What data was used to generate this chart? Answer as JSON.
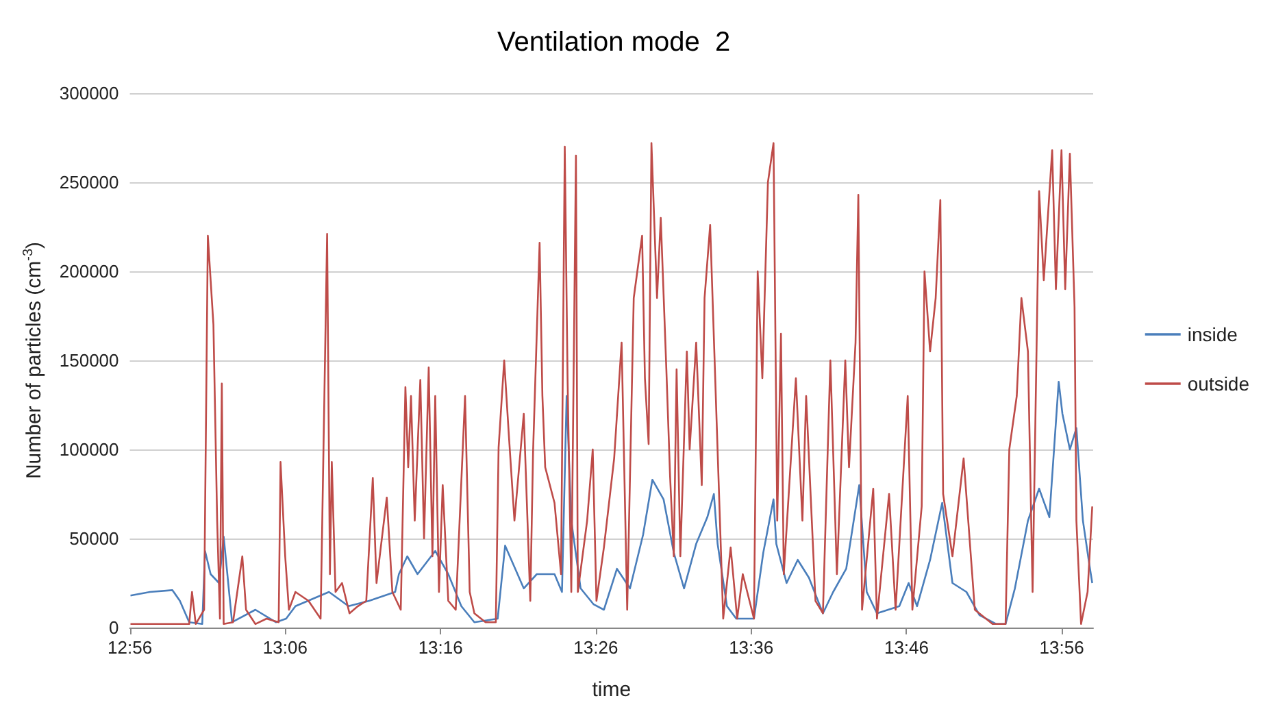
{
  "chart_data": {
    "type": "line",
    "title": "Ventilation mode  2",
    "xlabel": "time",
    "ylabel": "Number of particles (cm$^{-3}$)",
    "xlim": [
      12.9333,
      13.967
    ],
    "xticks": [
      {
        "value": 12.9333,
        "label": "12:56"
      },
      {
        "value": 13.1,
        "label": "13:06"
      },
      {
        "value": 13.2667,
        "label": "13:16"
      },
      {
        "value": 13.4333,
        "label": "13:26"
      },
      {
        "value": 13.6,
        "label": "13:36"
      },
      {
        "value": 13.7667,
        "label": "13:46"
      },
      {
        "value": 13.9333,
        "label": "13:56"
      }
    ],
    "ylim": [
      0,
      300000
    ],
    "yticks": [
      0,
      50000,
      100000,
      150000,
      200000,
      250000,
      300000
    ],
    "grid": "y",
    "legend": "right",
    "series": [
      {
        "name": "inside",
        "color": "#4a7ebb",
        "x": [
          12.934,
          12.955,
          12.979,
          12.987,
          12.997,
          13.011,
          13.014,
          13.02,
          13.029,
          13.034,
          13.043,
          13.068,
          13.09,
          13.101,
          13.111,
          13.147,
          13.168,
          13.19,
          13.218,
          13.222,
          13.231,
          13.242,
          13.261,
          13.275,
          13.289,
          13.303,
          13.328,
          13.336,
          13.356,
          13.37,
          13.389,
          13.397,
          13.402,
          13.407,
          13.417,
          13.431,
          13.442,
          13.456,
          13.47,
          13.484,
          13.494,
          13.506,
          13.517,
          13.528,
          13.541,
          13.553,
          13.56,
          13.564,
          13.574,
          13.584,
          13.603,
          13.613,
          13.624,
          13.627,
          13.638,
          13.65,
          13.662,
          13.677,
          13.688,
          13.702,
          13.716,
          13.724,
          13.735,
          13.759,
          13.769,
          13.778,
          13.792,
          13.805,
          13.816,
          13.831,
          13.845,
          13.863,
          13.873,
          13.883,
          13.897,
          13.909,
          13.92,
          13.93,
          13.934,
          13.942,
          13.949,
          13.956,
          13.963,
          13.966
        ],
        "values": [
          18000,
          20000,
          21000,
          15000,
          3000,
          2000,
          43000,
          30000,
          25000,
          51000,
          3000,
          10000,
          3000,
          5000,
          12000,
          20000,
          12000,
          15000,
          20000,
          30000,
          40000,
          30000,
          43000,
          30000,
          12000,
          3000,
          5000,
          46000,
          22000,
          30000,
          30000,
          20000,
          130000,
          60000,
          22000,
          13000,
          10000,
          33000,
          22000,
          52000,
          83000,
          72000,
          42000,
          22000,
          47000,
          62000,
          75000,
          47000,
          12000,
          5000,
          5000,
          42000,
          72000,
          47000,
          25000,
          38000,
          28000,
          8000,
          20000,
          33000,
          80000,
          20000,
          8000,
          12000,
          25000,
          12000,
          38000,
          70000,
          25000,
          20000,
          7000,
          2000,
          2000,
          22000,
          60000,
          78000,
          62000,
          138000,
          120000,
          100000,
          112000,
          60000,
          35000,
          25000
        ]
      },
      {
        "name": "outside",
        "color": "#be4b48",
        "x": [
          12.934,
          12.997,
          13.0,
          13.004,
          13.013,
          13.017,
          13.023,
          13.027,
          13.03,
          13.032,
          13.034,
          13.044,
          13.054,
          13.058,
          13.068,
          13.08,
          13.093,
          13.095,
          13.1,
          13.104,
          13.111,
          13.125,
          13.138,
          13.145,
          13.148,
          13.15,
          13.154,
          13.161,
          13.169,
          13.178,
          13.187,
          13.194,
          13.198,
          13.209,
          13.215,
          13.224,
          13.229,
          13.232,
          13.235,
          13.239,
          13.245,
          13.249,
          13.254,
          13.258,
          13.261,
          13.265,
          13.269,
          13.275,
          13.283,
          13.293,
          13.298,
          13.303,
          13.315,
          13.326,
          13.329,
          13.335,
          13.34,
          13.346,
          13.356,
          13.363,
          13.366,
          13.373,
          13.376,
          13.379,
          13.389,
          13.396,
          13.4,
          13.403,
          13.407,
          13.412,
          13.414,
          13.424,
          13.43,
          13.434,
          13.442,
          13.453,
          13.461,
          13.467,
          13.474,
          13.483,
          13.486,
          13.49,
          13.493,
          13.499,
          13.503,
          13.509,
          13.513,
          13.517,
          13.52,
          13.524,
          13.531,
          13.534,
          13.541,
          13.547,
          13.55,
          13.556,
          13.563,
          13.57,
          13.578,
          13.585,
          13.591,
          13.603,
          13.607,
          13.612,
          13.618,
          13.624,
          13.628,
          13.632,
          13.635,
          13.648,
          13.655,
          13.659,
          13.669,
          13.677,
          13.685,
          13.692,
          13.701,
          13.705,
          13.712,
          13.715,
          13.719,
          13.731,
          13.735,
          13.748,
          13.755,
          13.768,
          13.773,
          13.783,
          13.786,
          13.792,
          13.798,
          13.803,
          13.806,
          13.816,
          13.828,
          13.84,
          13.859,
          13.873,
          13.877,
          13.885,
          13.89,
          13.897,
          13.902,
          13.909,
          13.914,
          13.923,
          13.927,
          13.933,
          13.937,
          13.942,
          13.947,
          13.949,
          13.954,
          13.961,
          13.966
        ],
        "values": [
          2000,
          2000,
          20000,
          2000,
          10000,
          220000,
          170000,
          60000,
          5000,
          137000,
          2000,
          3000,
          40000,
          10000,
          2000,
          5000,
          3000,
          93000,
          40000,
          10000,
          20000,
          15000,
          5000,
          221000,
          30000,
          93000,
          20000,
          25000,
          8000,
          12000,
          15000,
          84000,
          25000,
          73000,
          20000,
          10000,
          135000,
          90000,
          130000,
          60000,
          139000,
          50000,
          146000,
          40000,
          130000,
          20000,
          80000,
          15000,
          10000,
          130000,
          20000,
          8000,
          3000,
          3000,
          101000,
          150000,
          108000,
          60000,
          120000,
          15000,
          99000,
          216000,
          130000,
          90000,
          70000,
          30000,
          270000,
          140000,
          20000,
          265000,
          20000,
          60000,
          100000,
          15000,
          45000,
          95000,
          160000,
          10000,
          185000,
          220000,
          140000,
          103000,
          272000,
          185000,
          230000,
          145000,
          85000,
          40000,
          145000,
          40000,
          155000,
          100000,
          160000,
          80000,
          185000,
          226000,
          115000,
          5000,
          45000,
          5000,
          30000,
          5000,
          200000,
          140000,
          250000,
          272000,
          60000,
          165000,
          30000,
          140000,
          60000,
          130000,
          15000,
          8000,
          150000,
          30000,
          150000,
          90000,
          160000,
          243000,
          10000,
          78000,
          5000,
          75000,
          10000,
          130000,
          10000,
          68000,
          200000,
          155000,
          185000,
          240000,
          75000,
          40000,
          95000,
          10000,
          2000,
          2000,
          100000,
          130000,
          185000,
          155000,
          20000,
          245000,
          195000,
          268000,
          190000,
          268000,
          190000,
          266000,
          180000,
          60000,
          2000,
          20000,
          68000
        ]
      }
    ]
  }
}
